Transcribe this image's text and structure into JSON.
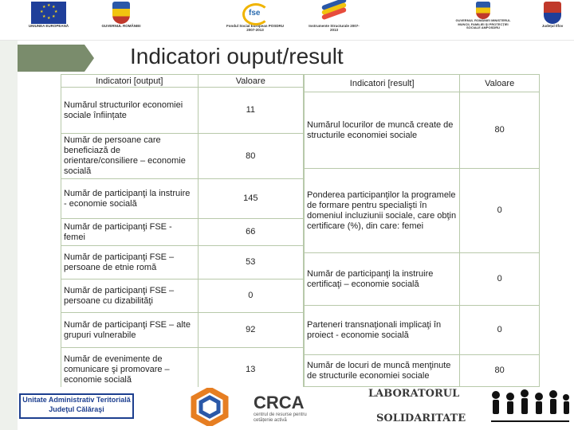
{
  "header": {
    "logos": [
      {
        "name": "eu-flag-logo",
        "caption": "UNIUNEA EUROPEANĂ"
      },
      {
        "name": "romania-crest-logo",
        "caption": "GUVERNUL ROMÂNIEI"
      },
      {
        "name": "fse-logo",
        "caption": "Fondul Social European POSDRU 2007-2013"
      },
      {
        "name": "structural-instruments-logo",
        "caption": "Instrumente Structurale 2007-2013"
      },
      {
        "name": "ministry-crest-logo",
        "caption": "GUVERNUL ROMÂNIEI MINISTERUL MUNCII, FAMILIEI ȘI PROTECȚIEI SOCIALE AMPOSDRU"
      },
      {
        "name": "county-crest-logo",
        "caption": "Județul Ilfov"
      }
    ]
  },
  "title": "Indicatori ouput/result",
  "output_table": {
    "headers": [
      "Indicatori [output]",
      "Valoare"
    ],
    "rows": [
      {
        "label": "Numărul structurilor economiei sociale înființate",
        "value": "11"
      },
      {
        "label": "Număr de persoane care beneficiază de orientare/consiliere – economie socială",
        "value": "80"
      },
      {
        "label": "Număr de participanţi la instruire - economie socială",
        "value": "145"
      },
      {
        "label": "Număr de participanţi FSE - femei",
        "value": "66"
      },
      {
        "label": "Număr de participanţi FSE – persoane de etnie romă",
        "value": "53"
      },
      {
        "label": "Număr de participanţi FSE – persoane cu dizabilităţi",
        "value": "0"
      },
      {
        "label": "Număr de participanţi FSE – alte grupuri vulnerabile",
        "value": "92"
      },
      {
        "label": "Număr de evenimente de comunicare şi promovare – economie socială",
        "value": "13"
      }
    ]
  },
  "result_table": {
    "headers": [
      "Indicatori [result]",
      "Valoare"
    ],
    "rows": [
      {
        "label": "Numărul locurilor de muncă create de structurile economiei sociale",
        "value": "80"
      },
      {
        "label": "Ponderea participanţilor la programele de formare pentru specialişti în domeniul incluziunii sociale, care obţin certificare (%), din care: femei",
        "value": "0"
      },
      {
        "label": "Număr de participanţi la instruire certificaţi – economie socială",
        "value": "0"
      },
      {
        "label": "Parteneri transnaţionali implicaţi în proiect - economie socială",
        "value": "0"
      },
      {
        "label": "Număr de locuri de muncă menţinute de structurile economiei sociale",
        "value": "80"
      }
    ]
  },
  "footer": {
    "uat_line1": "Unitate Administrativ Teritorială",
    "uat_line2": "Judeţul Călăraşi",
    "crca_name": "CRCA",
    "crca_subtitle": "centrul de resurse pentru cetățenie activă",
    "lab_line1": "LABORATORUL",
    "lab_line2": "SOLIDARITATE"
  }
}
